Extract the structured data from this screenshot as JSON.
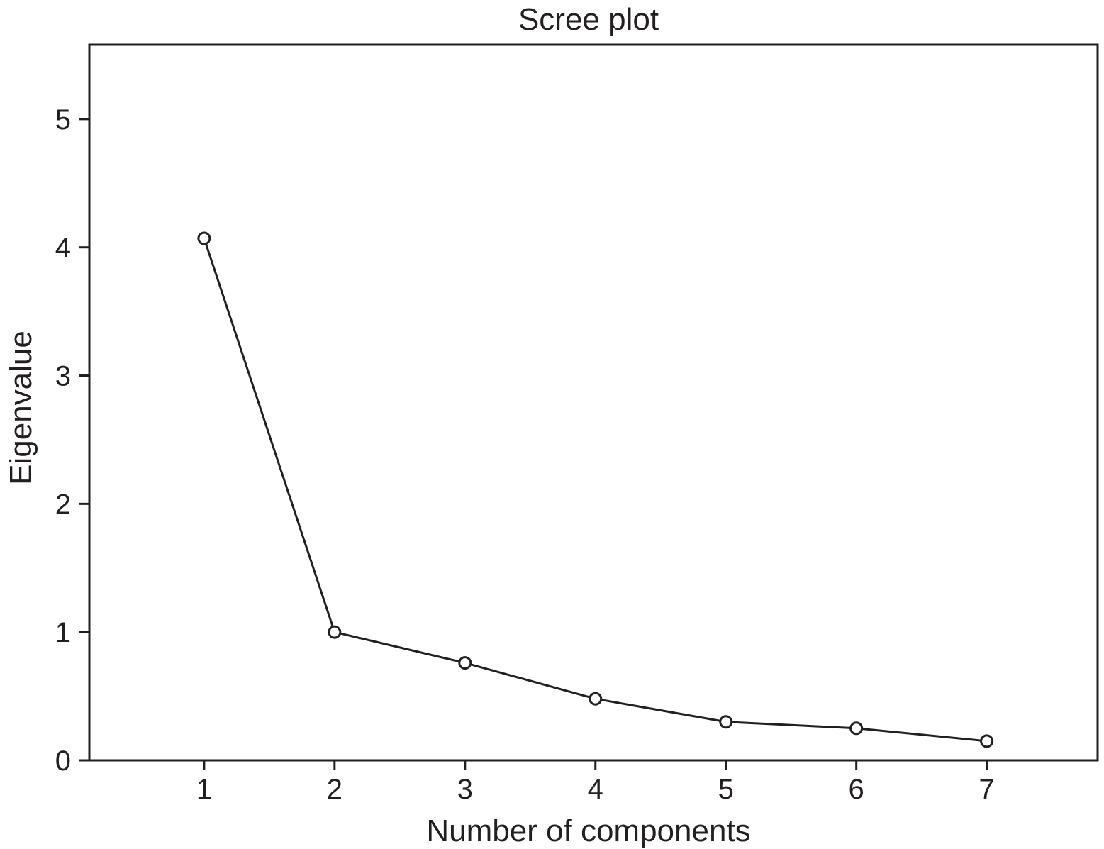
{
  "chart_data": {
    "type": "line",
    "title": "Scree plot",
    "xlabel": "Number of components",
    "ylabel": "Eigenvalue",
    "x": [
      1,
      2,
      3,
      4,
      5,
      6,
      7
    ],
    "series": [
      {
        "values": [
          4.07,
          1.0,
          0.76,
          0.48,
          0.3,
          0.25,
          0.15
        ]
      }
    ],
    "xlim": [
      0.12,
      7.85
    ],
    "ylim": [
      0,
      5.58
    ],
    "xticks": [
      1,
      2,
      3,
      4,
      5,
      6,
      7
    ],
    "yticks": [
      0,
      1,
      2,
      3,
      4,
      5
    ],
    "grid": false,
    "marker": "open-circle",
    "line_color": "#231f20"
  }
}
